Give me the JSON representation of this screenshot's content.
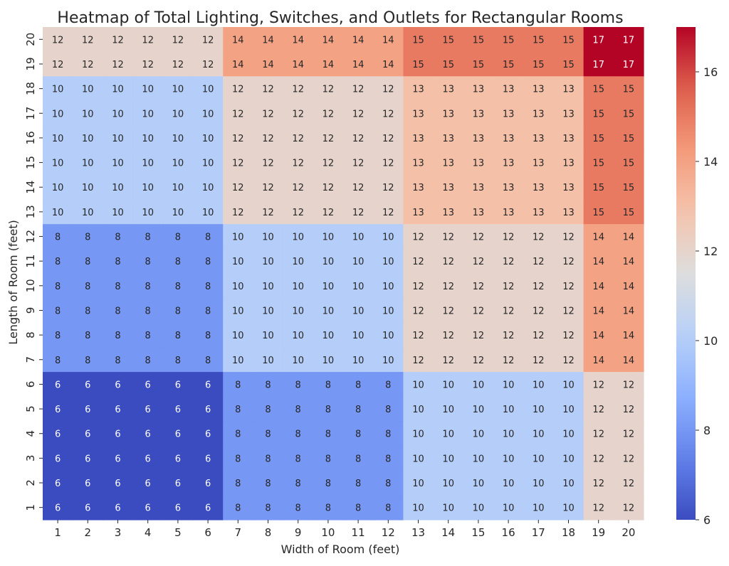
{
  "chart_data": {
    "type": "heatmap",
    "title": "Heatmap of Total Lighting, Switches, and Outlets for Rectangular Rooms",
    "xlabel": "Width of Room (feet)",
    "ylabel": "Length of Room (feet)",
    "x_categories": [
      "1",
      "2",
      "3",
      "4",
      "5",
      "6",
      "7",
      "8",
      "9",
      "10",
      "11",
      "12",
      "13",
      "14",
      "15",
      "16",
      "17",
      "18",
      "19",
      "20"
    ],
    "y_categories": [
      "20",
      "19",
      "18",
      "17",
      "16",
      "15",
      "14",
      "13",
      "12",
      "11",
      "10",
      "9",
      "8",
      "7",
      "6",
      "5",
      "4",
      "3",
      "2",
      "1"
    ],
    "values": [
      [
        12,
        12,
        12,
        12,
        12,
        12,
        14,
        14,
        14,
        14,
        14,
        14,
        15,
        15,
        15,
        15,
        15,
        15,
        17,
        17
      ],
      [
        12,
        12,
        12,
        12,
        12,
        12,
        14,
        14,
        14,
        14,
        14,
        14,
        15,
        15,
        15,
        15,
        15,
        15,
        17,
        17
      ],
      [
        10,
        10,
        10,
        10,
        10,
        10,
        12,
        12,
        12,
        12,
        12,
        12,
        13,
        13,
        13,
        13,
        13,
        13,
        15,
        15
      ],
      [
        10,
        10,
        10,
        10,
        10,
        10,
        12,
        12,
        12,
        12,
        12,
        12,
        13,
        13,
        13,
        13,
        13,
        13,
        15,
        15
      ],
      [
        10,
        10,
        10,
        10,
        10,
        10,
        12,
        12,
        12,
        12,
        12,
        12,
        13,
        13,
        13,
        13,
        13,
        13,
        15,
        15
      ],
      [
        10,
        10,
        10,
        10,
        10,
        10,
        12,
        12,
        12,
        12,
        12,
        12,
        13,
        13,
        13,
        13,
        13,
        13,
        15,
        15
      ],
      [
        10,
        10,
        10,
        10,
        10,
        10,
        12,
        12,
        12,
        12,
        12,
        12,
        13,
        13,
        13,
        13,
        13,
        13,
        15,
        15
      ],
      [
        10,
        10,
        10,
        10,
        10,
        10,
        12,
        12,
        12,
        12,
        12,
        12,
        13,
        13,
        13,
        13,
        13,
        13,
        15,
        15
      ],
      [
        8,
        8,
        8,
        8,
        8,
        8,
        10,
        10,
        10,
        10,
        10,
        10,
        12,
        12,
        12,
        12,
        12,
        12,
        14,
        14
      ],
      [
        8,
        8,
        8,
        8,
        8,
        8,
        10,
        10,
        10,
        10,
        10,
        10,
        12,
        12,
        12,
        12,
        12,
        12,
        14,
        14
      ],
      [
        8,
        8,
        8,
        8,
        8,
        8,
        10,
        10,
        10,
        10,
        10,
        10,
        12,
        12,
        12,
        12,
        12,
        12,
        14,
        14
      ],
      [
        8,
        8,
        8,
        8,
        8,
        8,
        10,
        10,
        10,
        10,
        10,
        10,
        12,
        12,
        12,
        12,
        12,
        12,
        14,
        14
      ],
      [
        8,
        8,
        8,
        8,
        8,
        8,
        10,
        10,
        10,
        10,
        10,
        10,
        12,
        12,
        12,
        12,
        12,
        12,
        14,
        14
      ],
      [
        8,
        8,
        8,
        8,
        8,
        8,
        10,
        10,
        10,
        10,
        10,
        10,
        12,
        12,
        12,
        12,
        12,
        12,
        14,
        14
      ],
      [
        6,
        6,
        6,
        6,
        6,
        6,
        8,
        8,
        8,
        8,
        8,
        8,
        10,
        10,
        10,
        10,
        10,
        10,
        12,
        12
      ],
      [
        6,
        6,
        6,
        6,
        6,
        6,
        8,
        8,
        8,
        8,
        8,
        8,
        10,
        10,
        10,
        10,
        10,
        10,
        12,
        12
      ],
      [
        6,
        6,
        6,
        6,
        6,
        6,
        8,
        8,
        8,
        8,
        8,
        8,
        10,
        10,
        10,
        10,
        10,
        10,
        12,
        12
      ],
      [
        6,
        6,
        6,
        6,
        6,
        6,
        8,
        8,
        8,
        8,
        8,
        8,
        10,
        10,
        10,
        10,
        10,
        10,
        12,
        12
      ],
      [
        6,
        6,
        6,
        6,
        6,
        6,
        8,
        8,
        8,
        8,
        8,
        8,
        10,
        10,
        10,
        10,
        10,
        10,
        12,
        12
      ],
      [
        6,
        6,
        6,
        6,
        6,
        6,
        8,
        8,
        8,
        8,
        8,
        8,
        10,
        10,
        10,
        10,
        10,
        10,
        12,
        12
      ]
    ],
    "colormap": "coolwarm",
    "vmin": 6,
    "vmax": 17,
    "colorbar_ticks": [
      6,
      8,
      10,
      12,
      14,
      16
    ],
    "annotations": true
  }
}
